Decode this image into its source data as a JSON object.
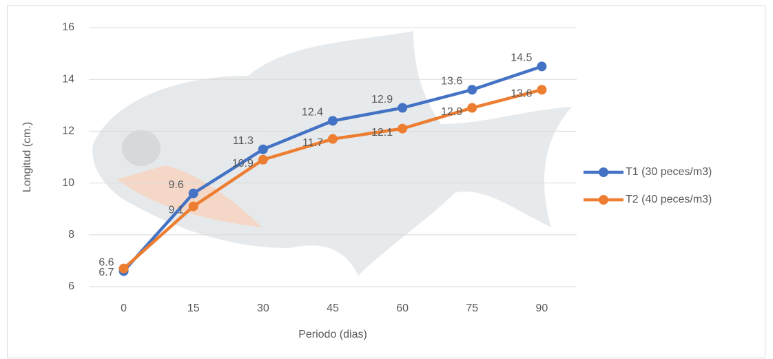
{
  "chart_data": {
    "type": "line",
    "x_label": "Periodo (dias)",
    "y_label": "Longitud (cm.)",
    "categories": [
      "0",
      "15",
      "30",
      "45",
      "60",
      "75",
      "90"
    ],
    "series": [
      {
        "name": "T1 (30 peces/m3)",
        "color": "#4472c4",
        "values": [
          6.6,
          9.6,
          11.3,
          12.4,
          12.9,
          13.6,
          14.5
        ]
      },
      {
        "name": "T2 (40 peces/m3)",
        "color": "#ed7d31",
        "values": [
          6.7,
          9.1,
          10.9,
          11.7,
          12.1,
          12.9,
          13.6
        ]
      }
    ],
    "ylim": [
      6,
      16
    ],
    "yticks": [
      6,
      8,
      10,
      12,
      14,
      16
    ],
    "grid": true,
    "legend": "right"
  }
}
